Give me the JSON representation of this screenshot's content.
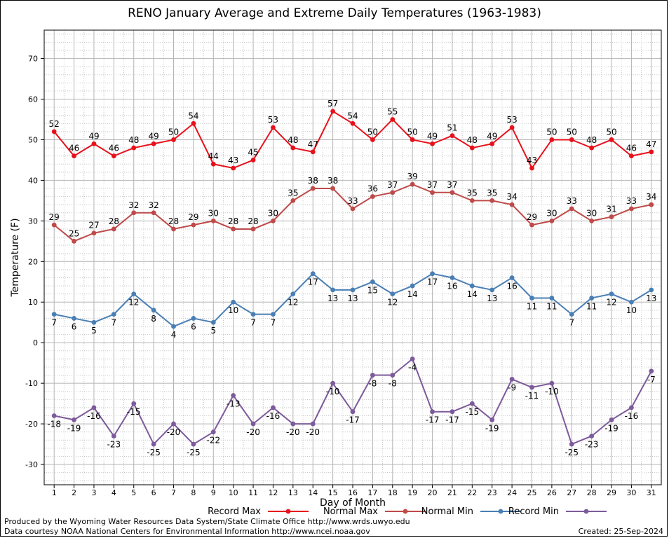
{
  "chart_data": {
    "type": "line",
    "title": "RENO January Average and Extreme Daily Temperatures (1963-1983)",
    "xlabel": "Day of Month",
    "ylabel": "Temperature (F)",
    "xlim": [
      0.5,
      31.5
    ],
    "ylim": [
      -35,
      77
    ],
    "x_ticks": [
      1,
      2,
      3,
      4,
      5,
      6,
      7,
      8,
      9,
      10,
      11,
      12,
      13,
      14,
      15,
      16,
      17,
      18,
      19,
      20,
      21,
      22,
      23,
      24,
      25,
      26,
      27,
      28,
      29,
      30,
      31
    ],
    "y_ticks": [
      -30,
      -20,
      -10,
      0,
      10,
      20,
      30,
      40,
      50,
      60,
      70
    ],
    "grid": true,
    "legend_position": "bottom",
    "series": [
      {
        "name": "Record Max",
        "color": "#e8111b",
        "values": [
          52,
          46,
          49,
          46,
          48,
          49,
          50,
          54,
          44,
          43,
          45,
          53,
          48,
          47,
          57,
          54,
          50,
          55,
          50,
          49,
          51,
          48,
          49,
          53,
          43,
          50,
          50,
          48,
          50,
          46,
          47
        ]
      },
      {
        "name": "Normal Max",
        "color": "#bf4a4a",
        "values": [
          29,
          25,
          27,
          28,
          32,
          32,
          28,
          29,
          30,
          28,
          28,
          30,
          35,
          38,
          38,
          33,
          36,
          37,
          39,
          37,
          37,
          35,
          35,
          34,
          29,
          30,
          33,
          30,
          31,
          33,
          34
        ]
      },
      {
        "name": "Normal Min",
        "color": "#4a7fb5",
        "values": [
          7,
          6,
          5,
          7,
          12,
          8,
          4,
          6,
          5,
          10,
          7,
          7,
          12,
          17,
          13,
          13,
          15,
          12,
          14,
          17,
          16,
          14,
          13,
          16,
          11,
          11,
          7,
          11,
          12,
          10,
          13
        ]
      },
      {
        "name": "Record Min",
        "color": "#7d5a9b",
        "values": [
          -18,
          -19,
          -16,
          -23,
          -15,
          -25,
          -20,
          -25,
          -22,
          -13,
          -20,
          -16,
          -20,
          -20,
          -10,
          -17,
          -8,
          -8,
          -4,
          -17,
          -17,
          -15,
          -19,
          -9,
          -11,
          -10,
          -25,
          -23,
          -19,
          -16,
          -7
        ]
      }
    ]
  },
  "footer": {
    "credit_line_1": "Produced by the Wyoming Water Resources Data System/State Climate Office http://www.wrds.uwyo.edu",
    "credit_line_2": "Data courtesy NOAA National Centers for Environmental Information http://www.ncei.noaa.gov",
    "created": "Created:  25-Sep-2024"
  }
}
